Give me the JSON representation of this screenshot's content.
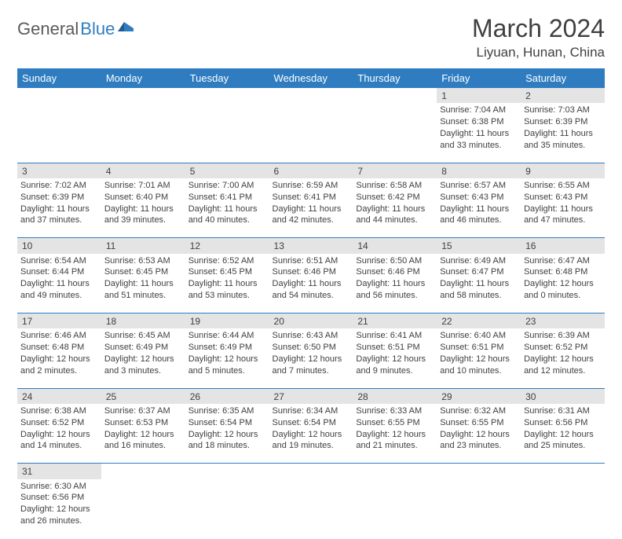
{
  "logo": {
    "part1": "General",
    "part2": "Blue"
  },
  "title": "March 2024",
  "location": "Liyuan, Hunan, China",
  "colors": {
    "header_bg": "#2f7dc0",
    "header_text": "#ffffff",
    "daynum_bg": "#e4e4e4",
    "border": "#2f7dc0",
    "text": "#404040",
    "background": "#ffffff"
  },
  "day_headers": [
    "Sunday",
    "Monday",
    "Tuesday",
    "Wednesday",
    "Thursday",
    "Friday",
    "Saturday"
  ],
  "weeks": [
    [
      null,
      null,
      null,
      null,
      null,
      {
        "n": "1",
        "sr": "Sunrise: 7:04 AM",
        "ss": "Sunset: 6:38 PM",
        "d1": "Daylight: 11 hours",
        "d2": "and 33 minutes."
      },
      {
        "n": "2",
        "sr": "Sunrise: 7:03 AM",
        "ss": "Sunset: 6:39 PM",
        "d1": "Daylight: 11 hours",
        "d2": "and 35 minutes."
      }
    ],
    [
      {
        "n": "3",
        "sr": "Sunrise: 7:02 AM",
        "ss": "Sunset: 6:39 PM",
        "d1": "Daylight: 11 hours",
        "d2": "and 37 minutes."
      },
      {
        "n": "4",
        "sr": "Sunrise: 7:01 AM",
        "ss": "Sunset: 6:40 PM",
        "d1": "Daylight: 11 hours",
        "d2": "and 39 minutes."
      },
      {
        "n": "5",
        "sr": "Sunrise: 7:00 AM",
        "ss": "Sunset: 6:41 PM",
        "d1": "Daylight: 11 hours",
        "d2": "and 40 minutes."
      },
      {
        "n": "6",
        "sr": "Sunrise: 6:59 AM",
        "ss": "Sunset: 6:41 PM",
        "d1": "Daylight: 11 hours",
        "d2": "and 42 minutes."
      },
      {
        "n": "7",
        "sr": "Sunrise: 6:58 AM",
        "ss": "Sunset: 6:42 PM",
        "d1": "Daylight: 11 hours",
        "d2": "and 44 minutes."
      },
      {
        "n": "8",
        "sr": "Sunrise: 6:57 AM",
        "ss": "Sunset: 6:43 PM",
        "d1": "Daylight: 11 hours",
        "d2": "and 46 minutes."
      },
      {
        "n": "9",
        "sr": "Sunrise: 6:55 AM",
        "ss": "Sunset: 6:43 PM",
        "d1": "Daylight: 11 hours",
        "d2": "and 47 minutes."
      }
    ],
    [
      {
        "n": "10",
        "sr": "Sunrise: 6:54 AM",
        "ss": "Sunset: 6:44 PM",
        "d1": "Daylight: 11 hours",
        "d2": "and 49 minutes."
      },
      {
        "n": "11",
        "sr": "Sunrise: 6:53 AM",
        "ss": "Sunset: 6:45 PM",
        "d1": "Daylight: 11 hours",
        "d2": "and 51 minutes."
      },
      {
        "n": "12",
        "sr": "Sunrise: 6:52 AM",
        "ss": "Sunset: 6:45 PM",
        "d1": "Daylight: 11 hours",
        "d2": "and 53 minutes."
      },
      {
        "n": "13",
        "sr": "Sunrise: 6:51 AM",
        "ss": "Sunset: 6:46 PM",
        "d1": "Daylight: 11 hours",
        "d2": "and 54 minutes."
      },
      {
        "n": "14",
        "sr": "Sunrise: 6:50 AM",
        "ss": "Sunset: 6:46 PM",
        "d1": "Daylight: 11 hours",
        "d2": "and 56 minutes."
      },
      {
        "n": "15",
        "sr": "Sunrise: 6:49 AM",
        "ss": "Sunset: 6:47 PM",
        "d1": "Daylight: 11 hours",
        "d2": "and 58 minutes."
      },
      {
        "n": "16",
        "sr": "Sunrise: 6:47 AM",
        "ss": "Sunset: 6:48 PM",
        "d1": "Daylight: 12 hours",
        "d2": "and 0 minutes."
      }
    ],
    [
      {
        "n": "17",
        "sr": "Sunrise: 6:46 AM",
        "ss": "Sunset: 6:48 PM",
        "d1": "Daylight: 12 hours",
        "d2": "and 2 minutes."
      },
      {
        "n": "18",
        "sr": "Sunrise: 6:45 AM",
        "ss": "Sunset: 6:49 PM",
        "d1": "Daylight: 12 hours",
        "d2": "and 3 minutes."
      },
      {
        "n": "19",
        "sr": "Sunrise: 6:44 AM",
        "ss": "Sunset: 6:49 PM",
        "d1": "Daylight: 12 hours",
        "d2": "and 5 minutes."
      },
      {
        "n": "20",
        "sr": "Sunrise: 6:43 AM",
        "ss": "Sunset: 6:50 PM",
        "d1": "Daylight: 12 hours",
        "d2": "and 7 minutes."
      },
      {
        "n": "21",
        "sr": "Sunrise: 6:41 AM",
        "ss": "Sunset: 6:51 PM",
        "d1": "Daylight: 12 hours",
        "d2": "and 9 minutes."
      },
      {
        "n": "22",
        "sr": "Sunrise: 6:40 AM",
        "ss": "Sunset: 6:51 PM",
        "d1": "Daylight: 12 hours",
        "d2": "and 10 minutes."
      },
      {
        "n": "23",
        "sr": "Sunrise: 6:39 AM",
        "ss": "Sunset: 6:52 PM",
        "d1": "Daylight: 12 hours",
        "d2": "and 12 minutes."
      }
    ],
    [
      {
        "n": "24",
        "sr": "Sunrise: 6:38 AM",
        "ss": "Sunset: 6:52 PM",
        "d1": "Daylight: 12 hours",
        "d2": "and 14 minutes."
      },
      {
        "n": "25",
        "sr": "Sunrise: 6:37 AM",
        "ss": "Sunset: 6:53 PM",
        "d1": "Daylight: 12 hours",
        "d2": "and 16 minutes."
      },
      {
        "n": "26",
        "sr": "Sunrise: 6:35 AM",
        "ss": "Sunset: 6:54 PM",
        "d1": "Daylight: 12 hours",
        "d2": "and 18 minutes."
      },
      {
        "n": "27",
        "sr": "Sunrise: 6:34 AM",
        "ss": "Sunset: 6:54 PM",
        "d1": "Daylight: 12 hours",
        "d2": "and 19 minutes."
      },
      {
        "n": "28",
        "sr": "Sunrise: 6:33 AM",
        "ss": "Sunset: 6:55 PM",
        "d1": "Daylight: 12 hours",
        "d2": "and 21 minutes."
      },
      {
        "n": "29",
        "sr": "Sunrise: 6:32 AM",
        "ss": "Sunset: 6:55 PM",
        "d1": "Daylight: 12 hours",
        "d2": "and 23 minutes."
      },
      {
        "n": "30",
        "sr": "Sunrise: 6:31 AM",
        "ss": "Sunset: 6:56 PM",
        "d1": "Daylight: 12 hours",
        "d2": "and 25 minutes."
      }
    ],
    [
      {
        "n": "31",
        "sr": "Sunrise: 6:30 AM",
        "ss": "Sunset: 6:56 PM",
        "d1": "Daylight: 12 hours",
        "d2": "and 26 minutes."
      },
      null,
      null,
      null,
      null,
      null,
      null
    ]
  ]
}
